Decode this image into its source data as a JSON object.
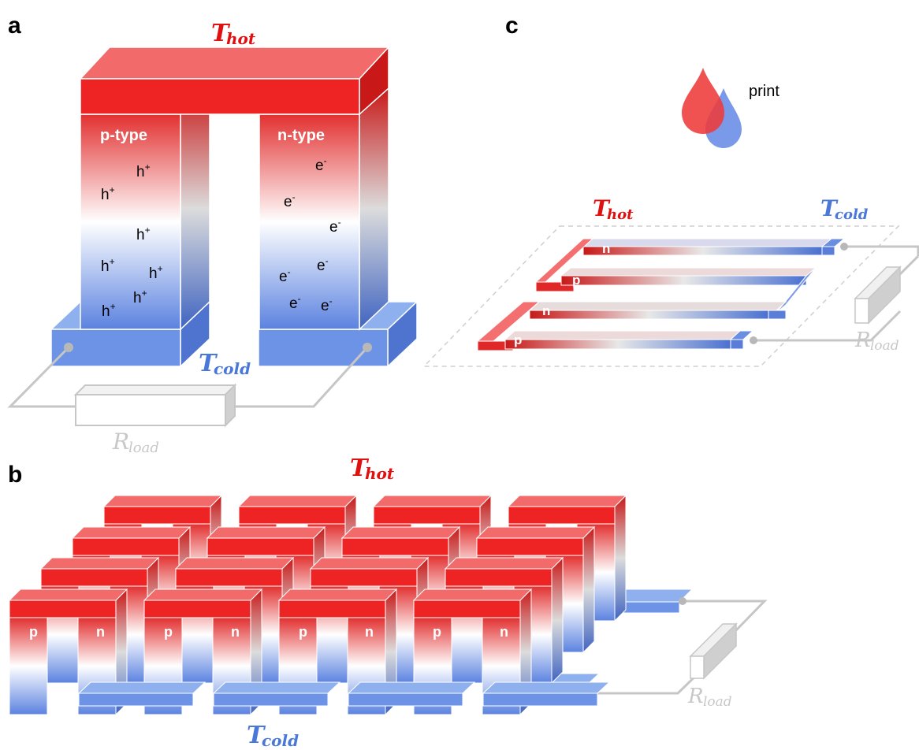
{
  "panels": {
    "a": "a",
    "b": "b",
    "c": "c"
  },
  "temps": {
    "hot_main": "T",
    "hot_sub": "hot",
    "cold_main": "T",
    "cold_sub": "cold"
  },
  "load": {
    "main": "R",
    "sub": "load"
  },
  "panel_a": {
    "p_leg_label": "p-type",
    "n_leg_label": "n-type",
    "hole_base": "h",
    "hole_sign": "+",
    "electron_base": "e",
    "electron_sign": "-"
  },
  "panel_b": {
    "leg_labels": [
      "p",
      "n",
      "p",
      "n",
      "p",
      "n",
      "p",
      "n"
    ]
  },
  "panel_c": {
    "print_label": "print",
    "strip_labels": [
      "n",
      "p",
      "n",
      "p"
    ]
  },
  "colors": {
    "hot": "#ee2222",
    "cold": "#5b82e0",
    "wire": "#c6c6c6",
    "white": "#ffffff"
  }
}
